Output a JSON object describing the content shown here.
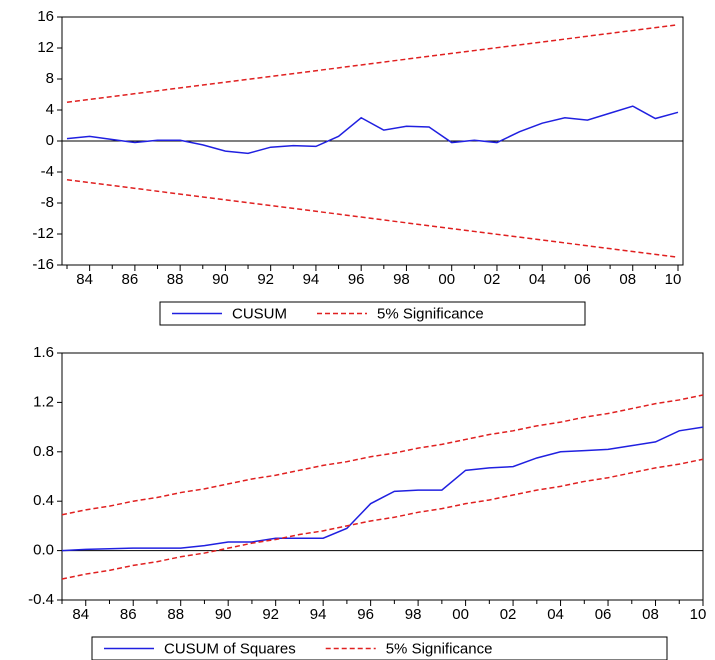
{
  "chart_data": [
    {
      "type": "line",
      "categories": [
        null,
        "84",
        null,
        "86",
        null,
        "88",
        null,
        "90",
        null,
        "92",
        null,
        "94",
        null,
        "96",
        null,
        "98",
        null,
        "00",
        null,
        "02",
        null,
        "04",
        null,
        "06",
        null,
        "08",
        null,
        "10"
      ],
      "series": [
        {
          "name": "CUSUM",
          "color": "#2020e0",
          "values": [
            0.3,
            0.6,
            0.2,
            -0.2,
            0.1,
            0.1,
            -0.5,
            -1.3,
            -1.6,
            -0.8,
            -0.6,
            -0.7,
            0.6,
            3.0,
            1.4,
            1.9,
            1.8,
            -0.2,
            0.1,
            -0.2,
            1.2,
            2.3,
            3.0,
            2.7,
            3.6,
            4.5,
            2.9,
            3.7
          ]
        },
        {
          "name": "5% Significance",
          "color": "#e02020",
          "dashed": true,
          "values": [
            5.0,
            5.37,
            5.74,
            6.11,
            6.48,
            6.85,
            7.22,
            7.59,
            7.96,
            8.33,
            8.7,
            9.07,
            9.44,
            9.81,
            10.19,
            10.56,
            10.93,
            11.3,
            11.67,
            12.04,
            12.41,
            12.78,
            13.15,
            13.52,
            13.89,
            14.26,
            14.63,
            15.0
          ],
          "lower_values": [
            -5.0,
            -5.37,
            -5.74,
            -6.11,
            -6.48,
            -6.85,
            -7.22,
            -7.59,
            -7.96,
            -8.33,
            -8.7,
            -9.07,
            -9.44,
            -9.81,
            -10.19,
            -10.56,
            -10.93,
            -11.3,
            -11.67,
            -12.04,
            -12.41,
            -12.78,
            -13.15,
            -13.52,
            -13.89,
            -14.26,
            -14.63,
            -15.0
          ]
        }
      ],
      "ylim": [
        -16,
        16
      ],
      "yticks": [
        -16,
        -12,
        -8,
        -4,
        0,
        4,
        8,
        12,
        16
      ],
      "zero_line": true
    },
    {
      "type": "line",
      "categories": [
        null,
        "84",
        null,
        "86",
        null,
        "88",
        null,
        "90",
        null,
        "92",
        null,
        "94",
        null,
        "96",
        null,
        "98",
        null,
        "00",
        null,
        "02",
        null,
        "04",
        null,
        "06",
        null,
        "08",
        null,
        "10"
      ],
      "series": [
        {
          "name": "CUSUM of Squares",
          "color": "#2020e0",
          "values": [
            0.0,
            0.01,
            0.015,
            0.02,
            0.02,
            0.02,
            0.04,
            0.07,
            0.07,
            0.1,
            0.1,
            0.1,
            0.18,
            0.38,
            0.48,
            0.49,
            0.49,
            0.65,
            0.67,
            0.68,
            0.75,
            0.8,
            0.81,
            0.82,
            0.85,
            0.88,
            0.97,
            1.0
          ]
        },
        {
          "name": "5% Significance",
          "color": "#e02020",
          "dashed": true,
          "values": [
            0.29,
            0.33,
            0.36,
            0.4,
            0.43,
            0.47,
            0.5,
            0.54,
            0.58,
            0.61,
            0.65,
            0.69,
            0.72,
            0.76,
            0.79,
            0.83,
            0.86,
            0.9,
            0.94,
            0.97,
            1.01,
            1.04,
            1.08,
            1.11,
            1.15,
            1.19,
            1.22,
            1.26
          ],
          "lower_values": [
            -0.23,
            -0.19,
            -0.16,
            -0.12,
            -0.09,
            -0.05,
            -0.02,
            0.02,
            0.06,
            0.09,
            0.13,
            0.16,
            0.2,
            0.24,
            0.27,
            0.31,
            0.34,
            0.38,
            0.41,
            0.45,
            0.49,
            0.52,
            0.56,
            0.59,
            0.63,
            0.67,
            0.7,
            0.74
          ]
        }
      ],
      "ylim": [
        -0.4,
        1.6
      ],
      "yticks": [
        -0.4,
        {
          "value": 0,
          "label": "0.0"
        },
        0.4,
        0.8,
        1.2,
        1.6
      ],
      "zero_line": true
    }
  ]
}
